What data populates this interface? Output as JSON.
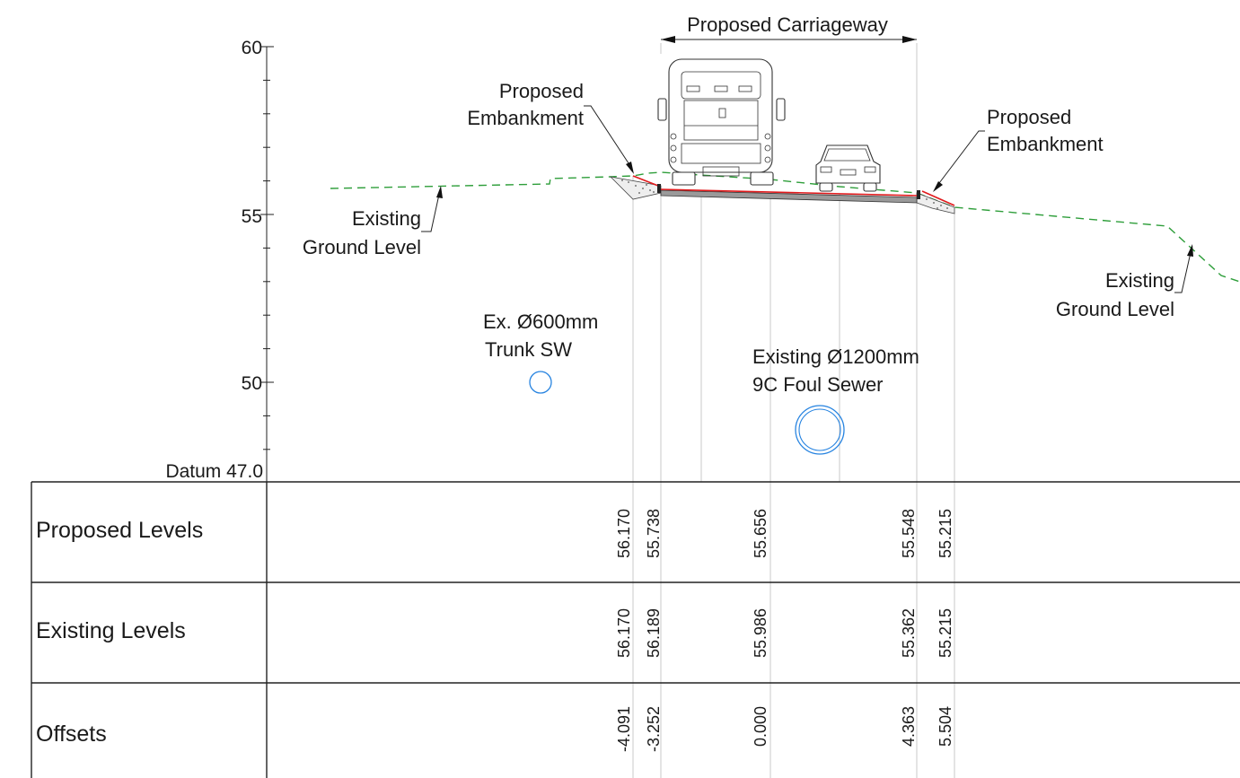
{
  "axis": {
    "tick_labels": [
      "60",
      "55",
      "50"
    ],
    "datum_label": "Datum 47.0"
  },
  "annotations": {
    "carriageway": "Proposed Carriageway",
    "embankment_left": [
      "Proposed",
      "Embankment"
    ],
    "embankment_right": [
      "Proposed",
      "Embankment"
    ],
    "ground_left": [
      "Existing",
      "Ground Level"
    ],
    "ground_right": [
      "Existing",
      "Ground Level"
    ],
    "pipe_small": [
      "Ex. Ø600mm",
      "Trunk SW"
    ],
    "pipe_large": [
      "Existing Ø1200mm",
      "9C Foul Sewer"
    ]
  },
  "table": {
    "rows": [
      {
        "title": "Proposed Levels",
        "values": [
          "56.170",
          "55.738",
          "55.656",
          "55.548",
          "55.215"
        ]
      },
      {
        "title": "Existing Levels",
        "values": [
          "56.170",
          "56.189",
          "55.986",
          "55.362",
          "55.215"
        ]
      },
      {
        "title": "Offsets",
        "values": [
          "-4.091",
          "-3.252",
          "0.000",
          "4.363",
          "5.504"
        ]
      }
    ]
  },
  "colors": {
    "existing_ground": "#2e9e3a",
    "proposed_edge": "#e0191b",
    "pipes": "#2683e0",
    "lines": "#222222"
  }
}
